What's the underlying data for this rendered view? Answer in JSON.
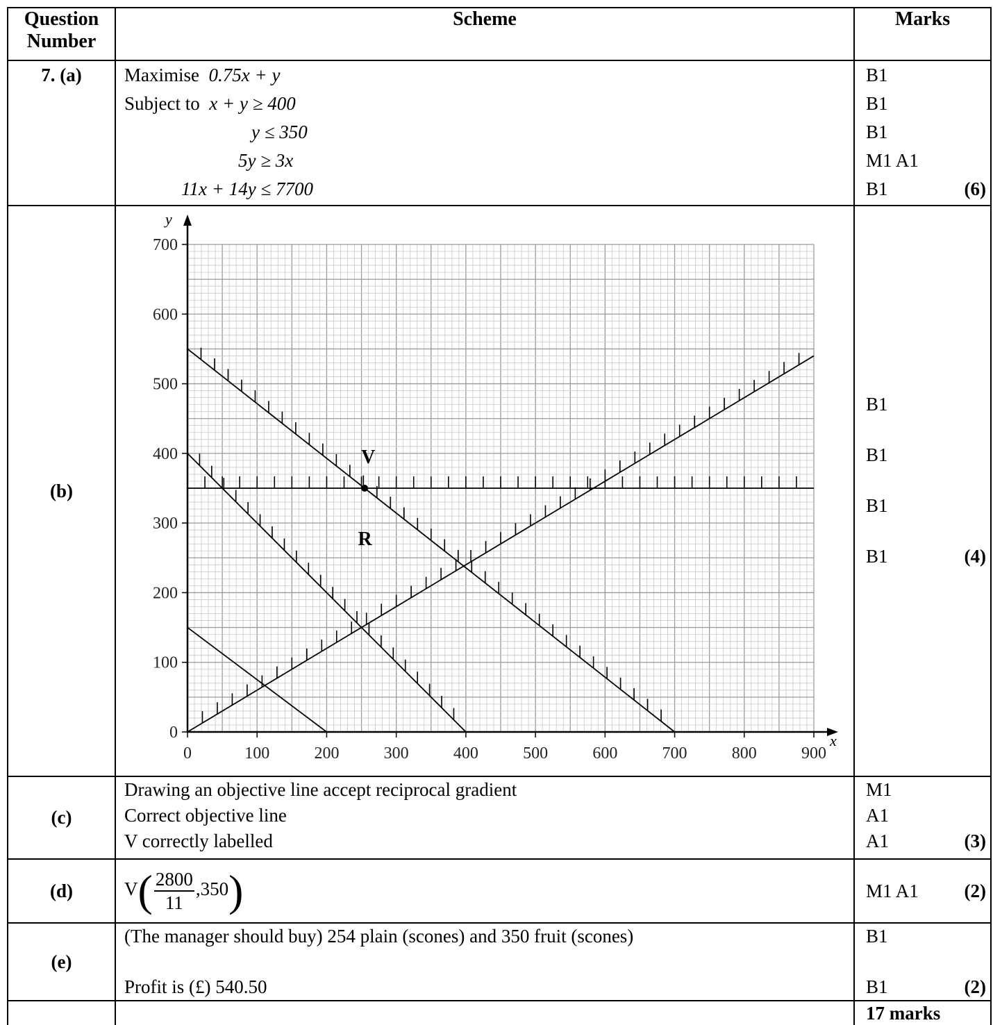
{
  "header": {
    "question": "Question Number",
    "scheme": "Scheme",
    "marks": "Marks"
  },
  "part_a": {
    "label": "7. (a)",
    "lines": [
      {
        "word": "Maximise",
        "expr": "0.75x + y",
        "mark": "B1",
        "total": ""
      },
      {
        "word": "Subject to",
        "expr": "x + y ≥ 400",
        "mark": "B1",
        "total": ""
      },
      {
        "word": "",
        "expr": "y ≤ 350",
        "mark": "B1",
        "total": ""
      },
      {
        "word": "",
        "expr": "5y ≥ 3x",
        "mark": "M1 A1",
        "total": ""
      },
      {
        "word": "",
        "expr": "11x + 14y ≤ 7700",
        "mark": "B1",
        "total": "(6)"
      }
    ]
  },
  "part_b": {
    "label": "(b)",
    "marks": [
      "B1",
      "B1",
      "B1",
      "B1"
    ],
    "total": "(4)"
  },
  "chart_data": {
    "type": "line",
    "xlabel": "x",
    "ylabel": "y",
    "xlim": [
      0,
      900
    ],
    "ylim": [
      0,
      700
    ],
    "x_ticks": [
      0,
      100,
      200,
      300,
      400,
      500,
      600,
      700,
      800,
      900
    ],
    "y_ticks": [
      0,
      100,
      200,
      300,
      400,
      500,
      600,
      700
    ],
    "grid": true,
    "series": [
      {
        "points": [
          [
            0,
            150
          ],
          [
            200,
            0
          ]
        ],
        "hatched": false
      },
      {
        "points": [
          [
            0,
            400
          ],
          [
            400,
            0
          ]
        ],
        "hatched": true
      },
      {
        "points": [
          [
            0,
            350
          ],
          [
            900,
            350
          ]
        ],
        "hatched": true
      },
      {
        "points": [
          [
            0,
            550
          ],
          [
            700,
            0
          ]
        ],
        "hatched": true
      },
      {
        "points": [
          [
            0,
            0
          ],
          [
            900,
            540
          ]
        ],
        "hatched": true
      }
    ],
    "points": [
      {
        "label": "V",
        "x": 254.5,
        "y": 350
      }
    ],
    "annotations": [
      {
        "text": "R",
        "x": 245,
        "y": 268
      }
    ]
  },
  "part_c": {
    "label": "(c)",
    "lines": [
      {
        "text": "Drawing an objective line accept reciprocal gradient",
        "mark": "M1",
        "total": ""
      },
      {
        "text": "Correct objective line",
        "mark": "A1",
        "total": ""
      },
      {
        "text": "V correctly labelled",
        "mark": "A1",
        "total": "(3)"
      }
    ]
  },
  "part_d": {
    "label": "(d)",
    "prefix": "V",
    "numerator": "2800",
    "denominator": "11",
    "y_value": ",350",
    "mark": "M1 A1",
    "total": "(2)"
  },
  "part_e": {
    "label": "(e)",
    "line1": "(The manager should buy) 254 plain (scones) and 350 fruit (scones)",
    "mark1": "B1",
    "line2": "Profit is (£) 540.50",
    "mark2": "B1",
    "total": "(2)"
  },
  "footer": {
    "total_marks": "17 marks"
  }
}
